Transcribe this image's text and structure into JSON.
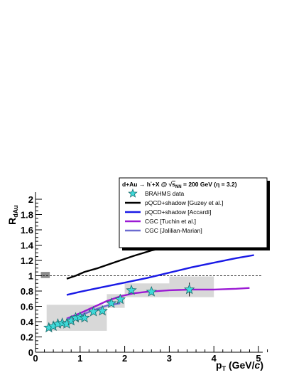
{
  "chart_data": {
    "type": "line",
    "title": "",
    "xlabel": "p",
    "xlabel_sub": "T",
    "xlabel_unit": "(GeV/",
    "xlabel_unit_italic": "c",
    "xlabel_unit_end": ")",
    "ylabel": "R",
    "ylabel_sub": "dAu",
    "xlim": [
      0,
      5.2
    ],
    "ylim": [
      0,
      2.05
    ],
    "x_ticks": [
      "0",
      "1",
      "2",
      "3",
      "4",
      "5"
    ],
    "y_ticks": [
      "0",
      "0.2",
      "0.4",
      "0.6",
      "0.8",
      "1",
      "1.2",
      "1.4",
      "1.6",
      "1.8",
      "2"
    ],
    "reference_line": 1.0,
    "legend": {
      "title_parts": [
        "d+Au → h",
        "-",
        "+X @ ",
        "s",
        "NN",
        " = 200 GeV (η = 3.2)"
      ],
      "placement": "top-right"
    },
    "data_points": {
      "name": "BRAHMS data",
      "color": "#3fd9d9",
      "x": [
        0.3,
        0.4,
        0.5,
        0.6,
        0.7,
        0.8,
        0.9,
        1.0,
        1.1,
        1.3,
        1.5,
        1.7,
        1.9,
        2.15,
        2.6,
        3.45
      ],
      "y": [
        0.32,
        0.34,
        0.37,
        0.38,
        0.37,
        0.41,
        0.45,
        0.46,
        0.45,
        0.53,
        0.54,
        0.64,
        0.69,
        0.81,
        0.79,
        0.82
      ],
      "sys_bands": [
        {
          "x0": 0.25,
          "x1": 1.6,
          "y0": 0.28,
          "y1": 0.62
        },
        {
          "x0": 1.6,
          "x1": 2.0,
          "y0": 0.58,
          "y1": 0.76
        },
        {
          "x0": 2.0,
          "x1": 3.0,
          "y0": 0.72,
          "y1": 0.9
        },
        {
          "x0": 3.0,
          "x1": 4.0,
          "y0": 0.72,
          "y1": 0.99
        }
      ],
      "norm_box": {
        "x0": 0.12,
        "x1": 0.32,
        "y0": 0.97,
        "y1": 1.05
      }
    },
    "series": [
      {
        "name": "pQCD+shadow [Guzey et al.]",
        "color": "#000000",
        "x": [
          0.7,
          0.9,
          1.1,
          1.4,
          1.8,
          2.2,
          2.6,
          3.0,
          3.4
        ],
        "y": [
          0.96,
          1.0,
          1.05,
          1.1,
          1.18,
          1.26,
          1.33,
          1.38,
          1.41
        ]
      },
      {
        "name": "pQCD+shadow [Accardi]",
        "color": "#1a1ae6",
        "x": [
          0.7,
          1.0,
          1.5,
          2.0,
          2.5,
          3.0,
          3.5,
          4.0,
          4.5,
          4.9
        ],
        "y": [
          0.75,
          0.79,
          0.85,
          0.91,
          0.97,
          1.04,
          1.11,
          1.17,
          1.23,
          1.27
        ]
      },
      {
        "name": "CGC [Tuchin et al.]",
        "color": "#9b1ad4",
        "x": [
          0.7,
          1.0,
          1.3,
          1.6,
          1.9,
          2.2,
          2.5,
          3.0,
          3.5,
          4.0,
          4.5,
          4.8
        ],
        "y": [
          0.44,
          0.51,
          0.59,
          0.67,
          0.73,
          0.77,
          0.79,
          0.81,
          0.82,
          0.82,
          0.83,
          0.84
        ]
      },
      {
        "name": "CGC [Jalilian-Marian]",
        "color": "#6b6bd0",
        "x": [
          0.7,
          1.0,
          1.3,
          1.6,
          1.9
        ],
        "y": [
          0.43,
          0.48,
          0.55,
          0.61,
          0.64
        ]
      }
    ]
  }
}
